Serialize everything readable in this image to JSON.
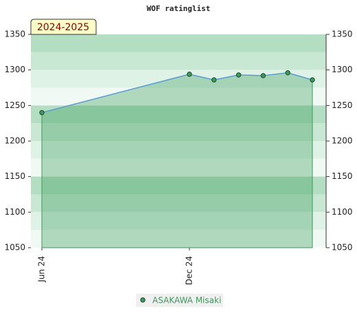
{
  "chart_data": {
    "type": "line",
    "title": "WOF ratinglist",
    "badge": "2024-2025",
    "x": [
      "2024-06",
      "2024-12",
      "2025-01",
      "2025-02",
      "2025-03",
      "2025-04",
      "2025-05"
    ],
    "xlim": [
      "2024-06",
      "2025-05"
    ],
    "xticks": [
      {
        "value": "2024-06",
        "label": "Jun 24"
      },
      {
        "value": "2024-12",
        "label": "Dec 24"
      }
    ],
    "series": [
      {
        "name": "ASAKAWA Misaki",
        "color": "#3a9a5a",
        "line_color": "#5b9bd5",
        "values": [
          1240,
          1294,
          1286,
          1293,
          1292,
          1296,
          1286
        ]
      }
    ],
    "ylim": [
      1050,
      1350
    ],
    "yticks": [
      1050,
      1100,
      1150,
      1200,
      1250,
      1300,
      1350
    ]
  }
}
